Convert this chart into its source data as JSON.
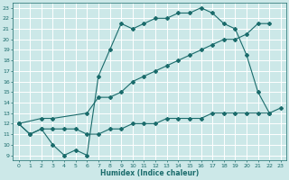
{
  "xlabel": "Humidex (Indice chaleur)",
  "bg_color": "#cce8e8",
  "grid_color": "#ffffff",
  "line_color": "#1a6b6b",
  "xlim": [
    -0.5,
    23.5
  ],
  "ylim": [
    8.5,
    23.5
  ],
  "xticks": [
    0,
    1,
    2,
    3,
    4,
    5,
    6,
    7,
    8,
    9,
    10,
    11,
    12,
    13,
    14,
    15,
    16,
    17,
    18,
    19,
    20,
    21,
    22,
    23
  ],
  "yticks": [
    9,
    10,
    11,
    12,
    13,
    14,
    15,
    16,
    17,
    18,
    19,
    20,
    21,
    22,
    23
  ],
  "line1_x": [
    0,
    1,
    2,
    3,
    4,
    5,
    6,
    7,
    8,
    9,
    10,
    11,
    12,
    13,
    14,
    15,
    16,
    17,
    18,
    19,
    20,
    21,
    22
  ],
  "line1_y": [
    12,
    11,
    11.5,
    10,
    9,
    9.5,
    9.0,
    16.5,
    19.0,
    21.5,
    21.0,
    21.5,
    22.0,
    22.0,
    22.5,
    22.5,
    23.0,
    22.5,
    21.5,
    21.0,
    18.5,
    15.0,
    13.0
  ],
  "line2_x": [
    0,
    2,
    3,
    6,
    7,
    8,
    9,
    10,
    11,
    12,
    13,
    14,
    15,
    16,
    17,
    18,
    19,
    20,
    21,
    22
  ],
  "line2_y": [
    12,
    12.5,
    12.5,
    13.0,
    14.5,
    14.5,
    15.0,
    16.0,
    16.5,
    17.0,
    17.5,
    18.0,
    18.5,
    19.0,
    19.5,
    20.0,
    20.0,
    20.5,
    21.5,
    21.5
  ],
  "line3_x": [
    0,
    1,
    2,
    3,
    4,
    5,
    6,
    7,
    8,
    9,
    10,
    11,
    12,
    13,
    14,
    15,
    16,
    17,
    18,
    19,
    20,
    21,
    22,
    23
  ],
  "line3_y": [
    12,
    11,
    11.5,
    11.5,
    11.5,
    11.5,
    11.0,
    11.0,
    11.5,
    11.5,
    12.0,
    12.0,
    12.0,
    12.5,
    12.5,
    12.5,
    12.5,
    13.0,
    13.0,
    13.0,
    13.0,
    13.0,
    13.0,
    13.5
  ]
}
